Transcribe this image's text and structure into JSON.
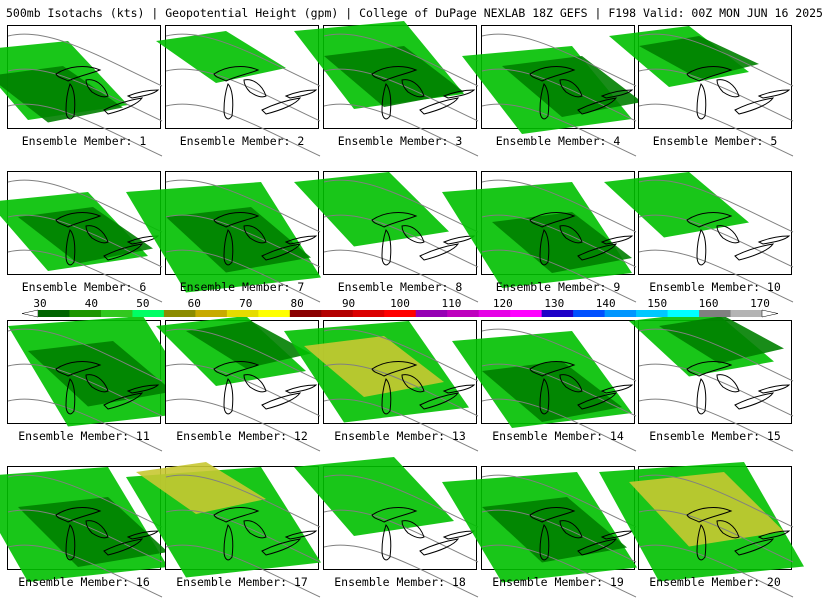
{
  "header": {
    "title": "500mb Isotachs (kts) | Geopotential Height (gpm) | College of DuPage NEXLAB  18Z GEFS | F198 Valid: 00Z MON JUN 16 2025"
  },
  "members": [
    {
      "label": "Ensemble Member: 1"
    },
    {
      "label": "Ensemble Member: 2"
    },
    {
      "label": "Ensemble Member: 3"
    },
    {
      "label": "Ensemble Member: 4"
    },
    {
      "label": "Ensemble Member: 5"
    },
    {
      "label": "Ensemble Member: 6"
    },
    {
      "label": "Ensemble Member: 7"
    },
    {
      "label": "Ensemble Member: 8"
    },
    {
      "label": "Ensemble Member: 9"
    },
    {
      "label": "Ensemble Member: 10"
    },
    {
      "label": "Ensemble Member: 11"
    },
    {
      "label": "Ensemble Member: 12"
    },
    {
      "label": "Ensemble Member: 13"
    },
    {
      "label": "Ensemble Member: 14"
    },
    {
      "label": "Ensemble Member: 15"
    },
    {
      "label": "Ensemble Member: 16"
    },
    {
      "label": "Ensemble Member: 17"
    },
    {
      "label": "Ensemble Member: 18"
    },
    {
      "label": "Ensemble Member: 19"
    },
    {
      "label": "Ensemble Member: 20"
    }
  ],
  "colorbar": {
    "labels": [
      "30",
      "40",
      "50",
      "60",
      "70",
      "80",
      "90",
      "100",
      "110",
      "120",
      "130",
      "140",
      "150",
      "160",
      "170"
    ],
    "colors": [
      "#006400",
      "#1e9600",
      "#32c81e",
      "#00ff64",
      "#8c8c00",
      "#c8aa00",
      "#e6dc00",
      "#ffff00",
      "#8b0000",
      "#b40000",
      "#dc0000",
      "#ff0000",
      "#9600b4",
      "#be00be",
      "#e600e6",
      "#ff00ff",
      "#1e00c8",
      "#0050ff",
      "#0096ff",
      "#00c8ff",
      "#00ffff",
      "#808080",
      "#b4b4b4"
    ]
  },
  "legend_colors": {
    "light_green": "#00d200",
    "mid_green": "#00a000",
    "dark_green": "#006400",
    "olive": "#969628",
    "yellow": "#c8c800",
    "height_contour": "#808080",
    "coastline": "#000000"
  }
}
